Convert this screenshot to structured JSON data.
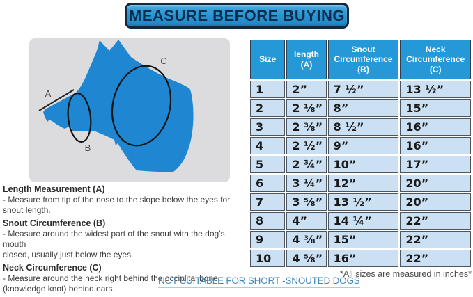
{
  "banner": {
    "title": "MEASURE BEFORE BUYING"
  },
  "diagram": {
    "label_a": "A",
    "label_b": "B",
    "label_c": "C"
  },
  "table": {
    "headers": [
      "Size",
      "length\n(A)",
      "Snout\nCircumference\n(B)",
      "Neck\nCircumference\n(C)"
    ],
    "col_names": [
      "size-cell",
      "length-cell",
      "snout-circumference-cell",
      "neck-circumference-cell"
    ],
    "rows": [
      [
        "1",
        "2”",
        "7 ½”",
        "13 ½”"
      ],
      [
        "2",
        "2 ⅛”",
        "8”",
        "15”"
      ],
      [
        "3",
        "2 ⅜”",
        "8 ½”",
        "16”"
      ],
      [
        "4",
        "2 ½”",
        "9”",
        "16”"
      ],
      [
        "5",
        "2 ¾”",
        "10”",
        "17”"
      ],
      [
        "6",
        "3 ¼”",
        "12”",
        "20”"
      ],
      [
        "7",
        "3 ⅝”",
        "13 ½”",
        "20”"
      ],
      [
        "8",
        "4”",
        "14 ¼”",
        "22”"
      ],
      [
        "9",
        "4 ⅜”",
        "15”",
        "22”"
      ],
      [
        "10",
        "4 ⅝”",
        "16”",
        "22”"
      ]
    ],
    "footnote": "*All sizes are measured in inches*"
  },
  "sections": [
    {
      "heading": "Length Measurement (A)",
      "body": " - Measure from tip of the nose to the slope below the eyes for\n   snout length."
    },
    {
      "heading": "Snout Circumference (B)",
      "body": "- Measure around the widest part of the snout with the dog’s mouth\n  closed, usually just below the eyes."
    },
    {
      "heading": "Neck Circumference (C)",
      "body": "- Measure around the neck right behind the occiplital bone\n  (knowledge knot) behind ears."
    }
  ],
  "notes": {
    "not_suitable": "NOT SUITABLE FOR SHORT -SNOUTED DOGS"
  },
  "colors": {
    "banner_blue": "#2d97d2",
    "header_blue": "#2598d8",
    "row_blue": "#cbe0f2",
    "dog_blue": "#1f87d1",
    "panel_gray": "#dcdcde",
    "link_blue": "#4187ba"
  }
}
